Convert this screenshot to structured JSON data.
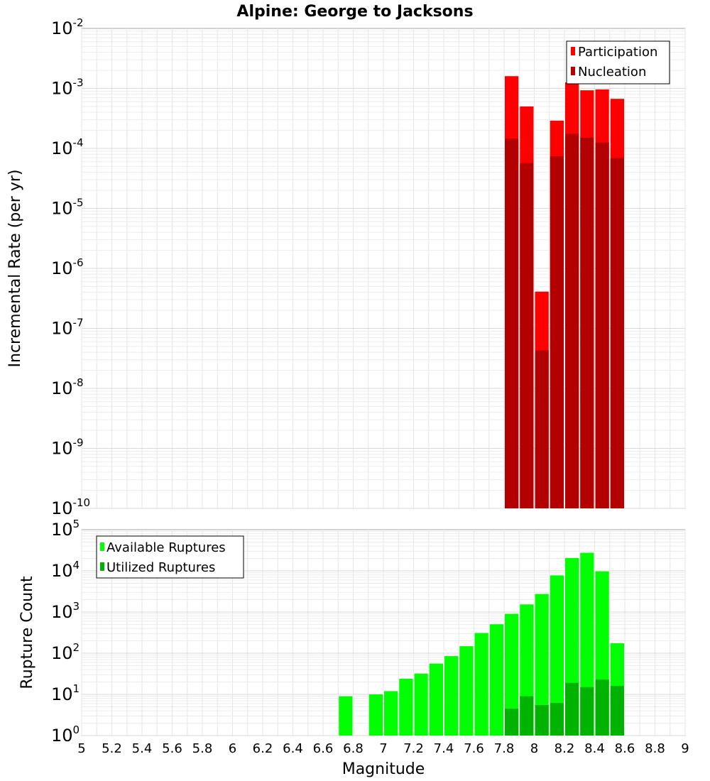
{
  "chart_data": {
    "title": "Alpine: George to Jacksons",
    "xlabel": "Magnitude",
    "xlim": [
      5,
      9
    ],
    "x_ticks": [
      "5",
      "5.2",
      "5.4",
      "5.6",
      "5.8",
      "6",
      "6.2",
      "6.4",
      "6.6",
      "6.8",
      "7",
      "7.2",
      "7.4",
      "7.6",
      "7.8",
      "8",
      "8.2",
      "8.4",
      "8.6",
      "8.8",
      "9"
    ],
    "grid": true,
    "panels": [
      {
        "type": "bar",
        "ylabel": "Incremental Rate (per yr)",
        "yscale": "log",
        "ylim_exp": [
          -10,
          -2
        ],
        "legend_position": "top-right",
        "series": [
          {
            "name": "Participation",
            "color": "#ff0000",
            "x": [
              7.85,
              7.95,
              8.05,
              8.15,
              8.25,
              8.35,
              8.45,
              8.55
            ],
            "values": [
              0.0016,
              0.0005,
              4.1e-07,
              0.00029,
              0.00126,
              0.00093,
              0.00096,
              0.00067
            ]
          },
          {
            "name": "Nucleation",
            "color": "#b30000",
            "x": [
              7.85,
              7.95,
              8.05,
              8.15,
              8.25,
              8.35,
              8.45,
              8.55
            ],
            "values": [
              0.000145,
              5.7e-05,
              4.3e-08,
              7.4e-05,
              0.000175,
              0.000151,
              0.000125,
              6.9e-05
            ]
          }
        ]
      },
      {
        "type": "bar",
        "ylabel": "Rupture Count",
        "yscale": "log",
        "ylim_exp": [
          0,
          5
        ],
        "legend_position": "top-left",
        "series": [
          {
            "name": "Available Ruptures",
            "color": "#00ff00",
            "x": [
              6.75,
              6.95,
              7.05,
              7.15,
              7.25,
              7.35,
              7.45,
              7.55,
              7.65,
              7.75,
              7.85,
              7.95,
              8.05,
              8.15,
              8.25,
              8.35,
              8.45,
              8.55
            ],
            "values": [
              9,
              10,
              12,
              24,
              32,
              56,
              85,
              148,
              310,
              505,
              900,
              1530,
              2740,
              7750,
              20500,
              27500,
              9700,
              175
            ]
          },
          {
            "name": "Utilized Ruptures",
            "color": "#00b300",
            "x": [
              7.85,
              7.95,
              8.05,
              8.15,
              8.25,
              8.35,
              8.45,
              8.55
            ],
            "values": [
              4.5,
              9,
              5.5,
              6.2,
              19,
              15,
              23,
              16
            ]
          }
        ]
      }
    ]
  }
}
